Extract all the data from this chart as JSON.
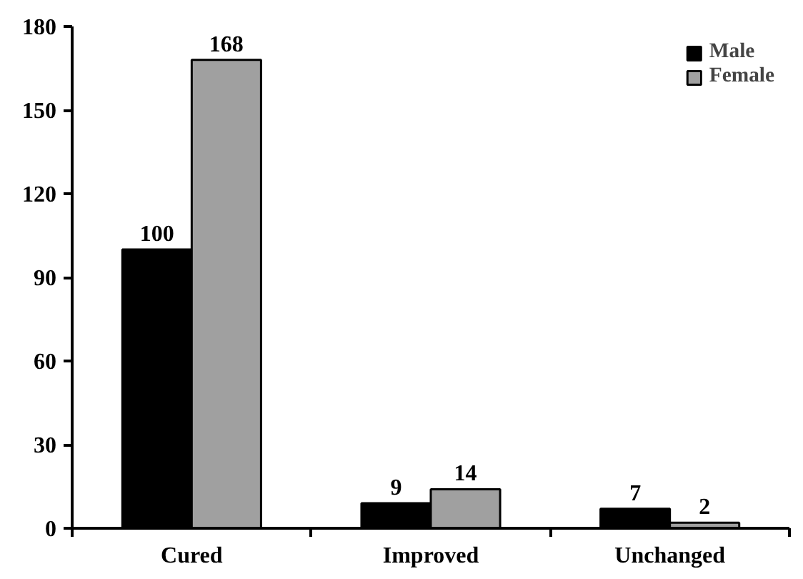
{
  "chart_data": {
    "type": "bar",
    "categories": [
      "Cured",
      "Improved",
      "Unchanged"
    ],
    "series": [
      {
        "name": "Male",
        "color": "#000000",
        "values": [
          100,
          9,
          7
        ]
      },
      {
        "name": "Female",
        "color": "#a0a0a0",
        "values": [
          168,
          14,
          2
        ]
      }
    ],
    "ylim": [
      0,
      180
    ],
    "yticks": [
      0,
      30,
      60,
      90,
      120,
      150,
      180
    ],
    "grid": false,
    "legend": "top right",
    "data_labels": true
  }
}
